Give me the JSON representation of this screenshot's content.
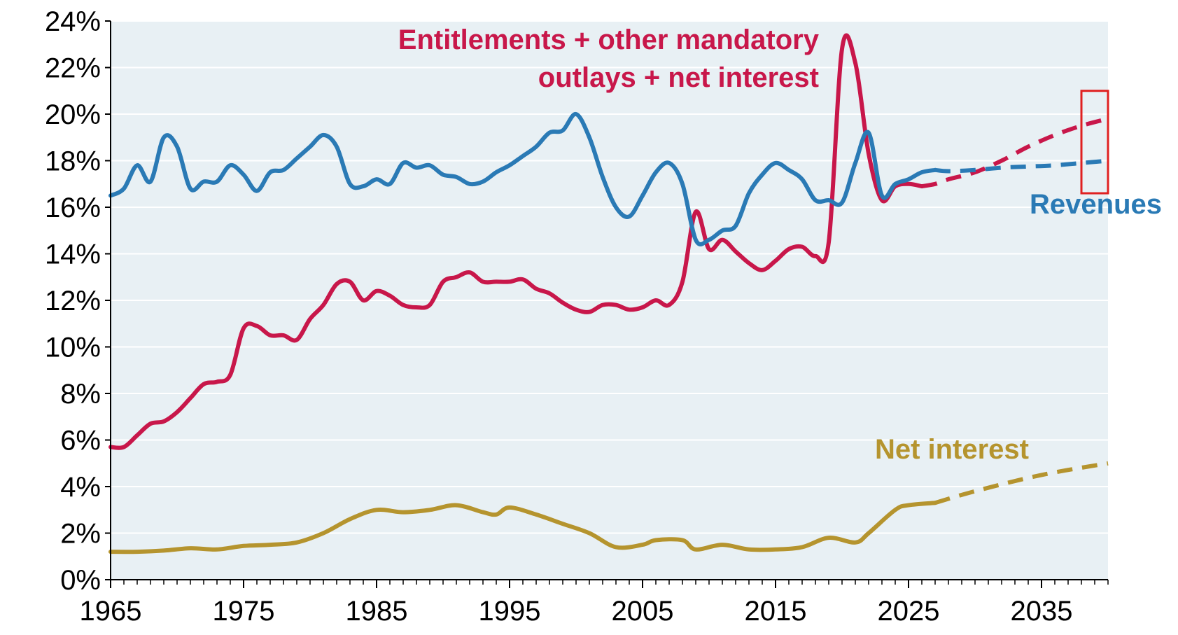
{
  "chart_data": {
    "type": "line",
    "xlim": [
      1965,
      2040
    ],
    "ylim": [
      0,
      24
    ],
    "x_ticks": [
      1965,
      1975,
      1985,
      1995,
      2005,
      2015,
      2025,
      2035
    ],
    "y_ticks": [
      0,
      2,
      4,
      6,
      8,
      10,
      12,
      14,
      16,
      18,
      20,
      22,
      24
    ],
    "y_tick_labels": [
      "0%",
      "2%",
      "4%",
      "6%",
      "8%",
      "10%",
      "12%",
      "14%",
      "16%",
      "18%",
      "20%",
      "22%",
      "24%"
    ],
    "grid": "horizontal",
    "plot_background": "#e8f0f4",
    "annotations": {
      "outlays_line1": "Entitlements + other mandatory",
      "outlays_line2": "outlays + net interest",
      "revenues": "Revenues",
      "net_interest": "Net interest"
    },
    "highlight_box": {
      "x_range": [
        2038,
        2040
      ],
      "y_range": [
        16.6,
        21
      ],
      "color": "#e02020"
    },
    "series": [
      {
        "key": "revenues",
        "color": "#2a7ab5",
        "historical": [
          [
            1965,
            16.5
          ],
          [
            1966,
            16.8
          ],
          [
            1967,
            17.8
          ],
          [
            1968,
            17.1
          ],
          [
            1969,
            19.0
          ],
          [
            1970,
            18.6
          ],
          [
            1971,
            16.8
          ],
          [
            1972,
            17.1
          ],
          [
            1973,
            17.1
          ],
          [
            1974,
            17.8
          ],
          [
            1975,
            17.4
          ],
          [
            1976,
            16.7
          ],
          [
            1977,
            17.5
          ],
          [
            1978,
            17.6
          ],
          [
            1979,
            18.1
          ],
          [
            1980,
            18.6
          ],
          [
            1981,
            19.1
          ],
          [
            1982,
            18.6
          ],
          [
            1983,
            17.0
          ],
          [
            1984,
            16.9
          ],
          [
            1985,
            17.2
          ],
          [
            1986,
            17.0
          ],
          [
            1987,
            17.9
          ],
          [
            1988,
            17.7
          ],
          [
            1989,
            17.8
          ],
          [
            1990,
            17.4
          ],
          [
            1991,
            17.3
          ],
          [
            1992,
            17.0
          ],
          [
            1993,
            17.1
          ],
          [
            1994,
            17.5
          ],
          [
            1995,
            17.8
          ],
          [
            1996,
            18.2
          ],
          [
            1997,
            18.6
          ],
          [
            1998,
            19.2
          ],
          [
            1999,
            19.3
          ],
          [
            2000,
            20.0
          ],
          [
            2001,
            19.0
          ],
          [
            2002,
            17.3
          ],
          [
            2003,
            16.0
          ],
          [
            2004,
            15.6
          ],
          [
            2005,
            16.5
          ],
          [
            2006,
            17.5
          ],
          [
            2007,
            17.9
          ],
          [
            2008,
            17.0
          ],
          [
            2009,
            14.6
          ],
          [
            2010,
            14.6
          ],
          [
            2011,
            15.0
          ],
          [
            2012,
            15.2
          ],
          [
            2013,
            16.6
          ],
          [
            2014,
            17.4
          ],
          [
            2015,
            17.9
          ],
          [
            2016,
            17.6
          ],
          [
            2017,
            17.2
          ],
          [
            2018,
            16.3
          ],
          [
            2019,
            16.3
          ],
          [
            2020,
            16.2
          ],
          [
            2021,
            17.9
          ],
          [
            2022,
            19.2
          ],
          [
            2023,
            16.5
          ],
          [
            2024,
            17.0
          ],
          [
            2025,
            17.2
          ],
          [
            2026,
            17.5
          ],
          [
            2027,
            17.6
          ]
        ],
        "projected": [
          [
            2027,
            17.6
          ],
          [
            2028,
            17.55
          ],
          [
            2030,
            17.6
          ],
          [
            2032,
            17.7
          ],
          [
            2034,
            17.75
          ],
          [
            2036,
            17.8
          ],
          [
            2038,
            17.9
          ],
          [
            2040,
            18.0
          ]
        ]
      },
      {
        "key": "outlays",
        "color": "#c8174a",
        "historical": [
          [
            1965,
            5.7
          ],
          [
            1966,
            5.7
          ],
          [
            1967,
            6.2
          ],
          [
            1968,
            6.7
          ],
          [
            1969,
            6.8
          ],
          [
            1970,
            7.2
          ],
          [
            1971,
            7.8
          ],
          [
            1972,
            8.4
          ],
          [
            1973,
            8.5
          ],
          [
            1974,
            8.8
          ],
          [
            1975,
            10.8
          ],
          [
            1976,
            10.9
          ],
          [
            1977,
            10.5
          ],
          [
            1978,
            10.5
          ],
          [
            1979,
            10.3
          ],
          [
            1980,
            11.2
          ],
          [
            1981,
            11.8
          ],
          [
            1982,
            12.7
          ],
          [
            1983,
            12.8
          ],
          [
            1984,
            12.0
          ],
          [
            1985,
            12.4
          ],
          [
            1986,
            12.2
          ],
          [
            1987,
            11.8
          ],
          [
            1988,
            11.7
          ],
          [
            1989,
            11.8
          ],
          [
            1990,
            12.8
          ],
          [
            1991,
            13.0
          ],
          [
            1992,
            13.2
          ],
          [
            1993,
            12.8
          ],
          [
            1994,
            12.8
          ],
          [
            1995,
            12.8
          ],
          [
            1996,
            12.9
          ],
          [
            1997,
            12.5
          ],
          [
            1998,
            12.3
          ],
          [
            1999,
            11.9
          ],
          [
            2000,
            11.6
          ],
          [
            2001,
            11.5
          ],
          [
            2002,
            11.8
          ],
          [
            2003,
            11.8
          ],
          [
            2004,
            11.6
          ],
          [
            2005,
            11.7
          ],
          [
            2006,
            12.0
          ],
          [
            2007,
            11.8
          ],
          [
            2008,
            12.8
          ],
          [
            2009,
            15.8
          ],
          [
            2010,
            14.2
          ],
          [
            2011,
            14.6
          ],
          [
            2012,
            14.1
          ],
          [
            2013,
            13.6
          ],
          [
            2014,
            13.3
          ],
          [
            2015,
            13.7
          ],
          [
            2016,
            14.2
          ],
          [
            2017,
            14.3
          ],
          [
            2018,
            13.9
          ],
          [
            2019,
            14.5
          ],
          [
            2020,
            22.8
          ],
          [
            2021,
            22.2
          ],
          [
            2022,
            18.3
          ],
          [
            2023,
            16.3
          ],
          [
            2024,
            16.9
          ],
          [
            2025,
            17.0
          ],
          [
            2026,
            16.9
          ]
        ],
        "projected": [
          [
            2026,
            16.9
          ],
          [
            2027,
            17.0
          ],
          [
            2028,
            17.2
          ],
          [
            2030,
            17.5
          ],
          [
            2032,
            18.0
          ],
          [
            2034,
            18.6
          ],
          [
            2036,
            19.1
          ],
          [
            2038,
            19.5
          ],
          [
            2040,
            19.8
          ]
        ]
      },
      {
        "key": "net_interest",
        "color": "#b5942e",
        "historical": [
          [
            1965,
            1.2
          ],
          [
            1967,
            1.2
          ],
          [
            1969,
            1.25
          ],
          [
            1971,
            1.35
          ],
          [
            1973,
            1.3
          ],
          [
            1975,
            1.45
          ],
          [
            1977,
            1.5
          ],
          [
            1979,
            1.6
          ],
          [
            1981,
            2.0
          ],
          [
            1983,
            2.6
          ],
          [
            1985,
            3.0
          ],
          [
            1987,
            2.9
          ],
          [
            1989,
            3.0
          ],
          [
            1991,
            3.2
          ],
          [
            1993,
            2.9
          ],
          [
            1994,
            2.8
          ],
          [
            1995,
            3.1
          ],
          [
            1997,
            2.8
          ],
          [
            1999,
            2.4
          ],
          [
            2001,
            2.0
          ],
          [
            2003,
            1.4
          ],
          [
            2005,
            1.5
          ],
          [
            2006,
            1.7
          ],
          [
            2008,
            1.7
          ],
          [
            2009,
            1.3
          ],
          [
            2011,
            1.5
          ],
          [
            2013,
            1.3
          ],
          [
            2015,
            1.3
          ],
          [
            2017,
            1.4
          ],
          [
            2019,
            1.8
          ],
          [
            2021,
            1.6
          ],
          [
            2022,
            2.0
          ],
          [
            2024,
            3.0
          ],
          [
            2025,
            3.2
          ],
          [
            2027,
            3.3
          ]
        ],
        "projected": [
          [
            2027,
            3.3
          ],
          [
            2030,
            3.8
          ],
          [
            2035,
            4.5
          ],
          [
            2040,
            5.0
          ]
        ]
      }
    ]
  }
}
